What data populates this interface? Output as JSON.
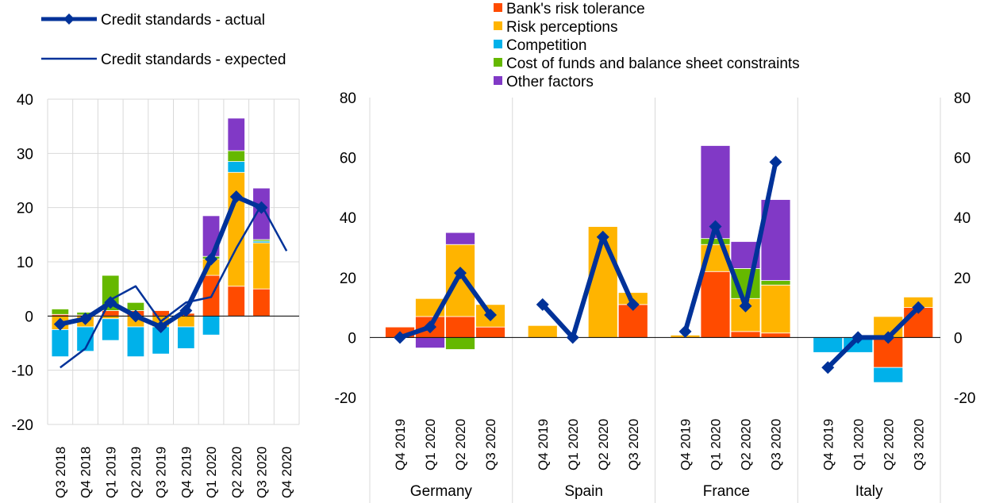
{
  "colors": {
    "bank_risk_tolerance": "#ff4b00",
    "risk_perceptions": "#ffb400",
    "competition": "#00b1ea",
    "cost_of_funds": "#65b800",
    "other_factors": "#8139c6",
    "line": "#003299",
    "grid": "#d9d9d9",
    "axis": "#000000"
  },
  "chart_data": [
    {
      "type": "bar",
      "stacked": true,
      "ylim": [
        -20,
        40
      ],
      "yticks": [
        -20,
        -10,
        0,
        10,
        20,
        30,
        40
      ],
      "categories": [
        "Q3 2018",
        "Q4 2018",
        "Q1 2019",
        "Q2 2019",
        "Q3 2019",
        "Q4 2019",
        "Q1 2020",
        "Q2 2020",
        "Q3 2020",
        "Q4 2020"
      ],
      "legend": {
        "actual_label": "Credit standards - actual",
        "expected_label": "Credit standards - expected",
        "placement": "top-left"
      },
      "series": [
        {
          "name": "Bank's risk tolerance",
          "color_key": "bank_risk_tolerance",
          "values": [
            0.3,
            0.2,
            1.0,
            1.0,
            1.0,
            0.5,
            7.5,
            5.5,
            5.0,
            null
          ]
        },
        {
          "name": "Risk perceptions",
          "color_key": "risk_perceptions",
          "values": [
            -2.5,
            -2.0,
            -0.5,
            -2.0,
            -2.0,
            -2.0,
            3.0,
            21.0,
            8.5,
            null
          ]
        },
        {
          "name": "Competition",
          "color_key": "competition",
          "values": [
            -5.0,
            -4.5,
            -4.0,
            -5.5,
            -5.0,
            -4.0,
            -3.5,
            2.0,
            0.3,
            null
          ]
        },
        {
          "name": "Cost of funds and balance sheet constraints",
          "color_key": "cost_of_funds",
          "values": [
            1.0,
            0.5,
            6.5,
            1.5,
            0.0,
            0.0,
            0.5,
            2.0,
            0.3,
            null
          ]
        },
        {
          "name": "Other factors",
          "color_key": "other_factors",
          "values": [
            0.0,
            0.0,
            0.0,
            0.0,
            0.0,
            0.0,
            7.5,
            6.0,
            9.5,
            null
          ]
        }
      ],
      "lines": [
        {
          "name": "Credit standards - actual",
          "style": "thick-diamond",
          "values": [
            -1.5,
            -0.5,
            2.5,
            0.0,
            -2.0,
            1.0,
            10.5,
            22.0,
            20.0,
            null
          ]
        },
        {
          "name": "Credit standards - expected",
          "style": "thin",
          "values": [
            -9.5,
            -6.0,
            3.0,
            5.5,
            -1.0,
            2.5,
            3.5,
            12.5,
            20.5,
            12.0
          ]
        }
      ]
    },
    {
      "type": "bar",
      "stacked": true,
      "ylim": [
        -20,
        80
      ],
      "yticks": [
        -20,
        0,
        20,
        40,
        60,
        80
      ],
      "right_axis_ticks": [
        -20,
        0,
        20,
        40,
        60,
        80
      ],
      "groups": [
        "Germany",
        "Spain",
        "France",
        "Italy"
      ],
      "categories": [
        "Q4 2019",
        "Q1 2020",
        "Q2 2020",
        "Q3 2020"
      ],
      "legend": {
        "placement": "top",
        "items": [
          "Bank's risk tolerance",
          "Risk perceptions",
          "Competition",
          "Cost of funds and balance sheet constraints",
          "Other factors"
        ]
      },
      "series": [
        {
          "name": "Bank's risk tolerance",
          "color_key": "bank_risk_tolerance",
          "values": [
            [
              3.5,
              7.0,
              7.0,
              3.5
            ],
            [
              0,
              0,
              0,
              11.0
            ],
            [
              0,
              22.0,
              2.0,
              1.5
            ],
            [
              0,
              0,
              -10.0,
              10.0
            ]
          ]
        },
        {
          "name": "Risk perceptions",
          "color_key": "risk_perceptions",
          "values": [
            [
              0,
              6.0,
              24.0,
              7.5
            ],
            [
              4.0,
              0,
              37.0,
              4.0
            ],
            [
              0.8,
              9.0,
              11.0,
              16.0
            ],
            [
              0,
              0,
              7.0,
              3.5
            ]
          ]
        },
        {
          "name": "Competition",
          "color_key": "competition",
          "values": [
            [
              0,
              0,
              0,
              0
            ],
            [
              0,
              0,
              0,
              0
            ],
            [
              0,
              0,
              0,
              0
            ],
            [
              -5.0,
              -5.0,
              -5.0,
              0
            ]
          ]
        },
        {
          "name": "Cost of funds and balance sheet constraints",
          "color_key": "cost_of_funds",
          "values": [
            [
              0,
              0,
              -4.0,
              0
            ],
            [
              0,
              0,
              0,
              0
            ],
            [
              0,
              2.0,
              10.0,
              1.5
            ],
            [
              0,
              0,
              0,
              0
            ]
          ]
        },
        {
          "name": "Other factors",
          "color_key": "other_factors",
          "values": [
            [
              0,
              -3.5,
              4.0,
              0
            ],
            [
              0,
              0,
              0,
              0
            ],
            [
              0,
              31.0,
              9.0,
              27.0
            ],
            [
              0,
              0,
              0,
              0
            ]
          ]
        }
      ],
      "lines": [
        {
          "name": "Credit standards - actual",
          "style": "thick-diamond",
          "values": [
            [
              0.0,
              3.5,
              21.5,
              7.5
            ],
            [
              11.0,
              0.0,
              33.5,
              11.0
            ],
            [
              2.0,
              37.0,
              10.5,
              58.5
            ],
            [
              -10.0,
              0.0,
              0.0,
              10.0
            ]
          ]
        }
      ]
    }
  ]
}
